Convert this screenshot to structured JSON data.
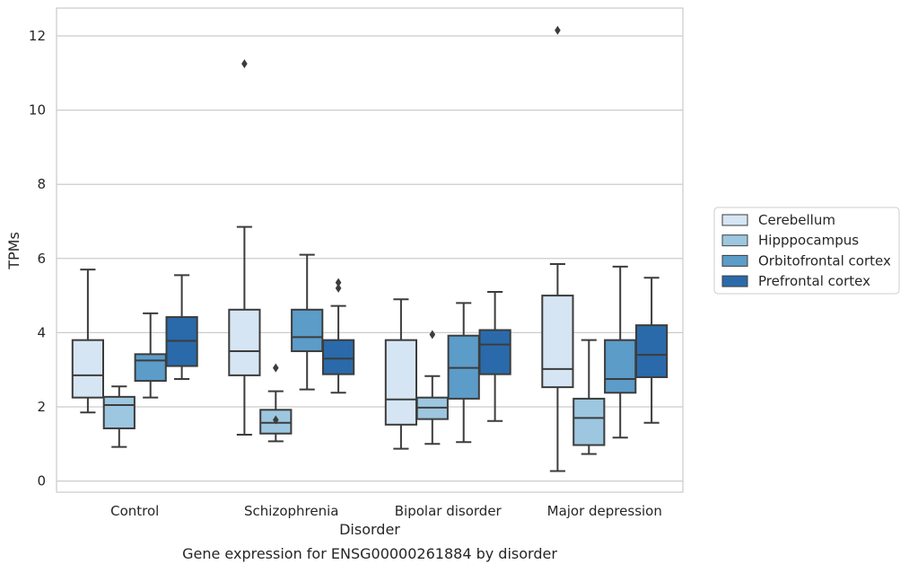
{
  "chart_data": {
    "type": "box",
    "title": "",
    "caption": "Gene expression for ENSG00000261884 by disorder",
    "xlabel": "Disorder",
    "ylabel": "TPMs",
    "ylim": [
      -0.3,
      12.75
    ],
    "yticks": [
      0,
      2,
      4,
      6,
      8,
      10,
      12
    ],
    "grid": "horizontal",
    "legend_position": "right",
    "categories": [
      "Control",
      "Schizophrenia",
      "Bipolar disorder",
      "Major depression"
    ],
    "series": [
      {
        "name": "Cerebellum",
        "color": "#d6e5f3",
        "boxes": [
          {
            "whisker_low": 1.85,
            "q1": 2.25,
            "median": 2.85,
            "q3": 3.8,
            "whisker_high": 5.7,
            "outliers": []
          },
          {
            "whisker_low": 1.25,
            "q1": 2.85,
            "median": 3.5,
            "q3": 4.62,
            "whisker_high": 6.85,
            "outliers": [
              11.25
            ]
          },
          {
            "whisker_low": 0.87,
            "q1": 1.52,
            "median": 2.2,
            "q3": 3.8,
            "whisker_high": 4.9,
            "outliers": []
          },
          {
            "whisker_low": 0.27,
            "q1": 2.53,
            "median": 3.02,
            "q3": 5.0,
            "whisker_high": 5.85,
            "outliers": [
              12.15
            ]
          }
        ]
      },
      {
        "name": "Hipppocampus",
        "color": "#9dc7e0",
        "boxes": [
          {
            "whisker_low": 0.92,
            "q1": 1.42,
            "median": 2.05,
            "q3": 2.27,
            "whisker_high": 2.55,
            "outliers": []
          },
          {
            "whisker_low": 1.07,
            "q1": 1.28,
            "median": 1.57,
            "q3": 1.92,
            "whisker_high": 2.42,
            "outliers": [
              3.05,
              1.65
            ]
          },
          {
            "whisker_low": 1.0,
            "q1": 1.67,
            "median": 1.98,
            "q3": 2.25,
            "whisker_high": 2.83,
            "outliers": [
              3.95
            ]
          },
          {
            "whisker_low": 0.73,
            "q1": 0.97,
            "median": 1.7,
            "q3": 2.22,
            "whisker_high": 3.8,
            "outliers": []
          }
        ]
      },
      {
        "name": "Orbitofrontal cortex",
        "color": "#5c9cc9",
        "boxes": [
          {
            "whisker_low": 2.25,
            "q1": 2.7,
            "median": 3.25,
            "q3": 3.42,
            "whisker_high": 4.52,
            "outliers": []
          },
          {
            "whisker_low": 2.47,
            "q1": 3.5,
            "median": 3.88,
            "q3": 4.62,
            "whisker_high": 6.1,
            "outliers": []
          },
          {
            "whisker_low": 1.05,
            "q1": 2.22,
            "median": 3.05,
            "q3": 3.92,
            "whisker_high": 4.8,
            "outliers": []
          },
          {
            "whisker_low": 1.17,
            "q1": 2.38,
            "median": 2.75,
            "q3": 3.8,
            "whisker_high": 5.78,
            "outliers": []
          }
        ]
      },
      {
        "name": "Prefrontal cortex",
        "color": "#2a6aaa",
        "boxes": [
          {
            "whisker_low": 2.75,
            "q1": 3.1,
            "median": 3.78,
            "q3": 4.42,
            "whisker_high": 5.55,
            "outliers": []
          },
          {
            "whisker_low": 2.38,
            "q1": 2.88,
            "median": 3.3,
            "q3": 3.8,
            "whisker_high": 4.72,
            "outliers": [
              5.35,
              5.2
            ]
          },
          {
            "whisker_low": 1.62,
            "q1": 2.88,
            "median": 3.68,
            "q3": 4.07,
            "whisker_high": 5.1,
            "outliers": []
          },
          {
            "whisker_low": 1.57,
            "q1": 2.8,
            "median": 3.4,
            "q3": 4.2,
            "whisker_high": 5.48,
            "outliers": []
          }
        ]
      }
    ]
  }
}
